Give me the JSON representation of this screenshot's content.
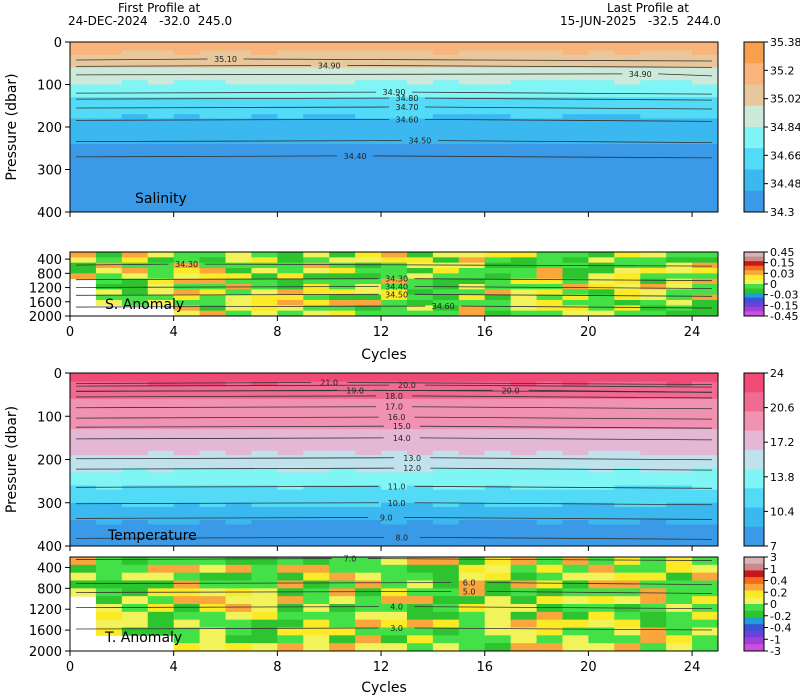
{
  "header": {
    "first_label": "First Profile at",
    "first_value": "24-DEC-2024   -32.0  245.0",
    "last_label": "Last Profile at",
    "last_value": "15-JUN-2025   -32.5  244.0"
  },
  "chart_data": [
    {
      "type": "heatmap",
      "title": "Salinity",
      "xlabel": "Cycles",
      "ylabel": "Pressure (dbar)",
      "xlim": [
        0,
        25
      ],
      "ylim": [
        400,
        0
      ],
      "xticks": [
        0,
        4,
        8,
        12,
        16,
        20,
        24
      ],
      "yticks": [
        0,
        100,
        200,
        300,
        400
      ],
      "colorbar": {
        "ticks": [
          "35.38",
          "35.2",
          "35.02",
          "34.84",
          "34.66",
          "34.48",
          "34.3"
        ],
        "colors": [
          "#f7a04b",
          "#f8b47a",
          "#e8c79c",
          "#cde9da",
          "#7ff5f5",
          "#52daf7",
          "#3bb8f0",
          "#3a9ae8"
        ]
      },
      "contours": [
        {
          "label": "35.10",
          "x": 6.0,
          "y": 40
        },
        {
          "label": "34.90",
          "x": 10.0,
          "y": 55
        },
        {
          "label": "34.90",
          "x": 22.0,
          "y": 75
        },
        {
          "label": "34.90",
          "x": 12.5,
          "y": 118
        },
        {
          "label": "34.80",
          "x": 13.0,
          "y": 132
        },
        {
          "label": "34.70",
          "x": 13.0,
          "y": 153
        },
        {
          "label": "34.60",
          "x": 13.0,
          "y": 182
        },
        {
          "label": "34.50",
          "x": 13.5,
          "y": 232
        },
        {
          "label": "34.40",
          "x": 11.0,
          "y": 268
        }
      ]
    },
    {
      "type": "heatmap",
      "title": "S. Anomaly",
      "xlabel": "Cycles",
      "xlim": [
        0,
        25
      ],
      "ylim": [
        2000,
        200
      ],
      "xticks": [
        0,
        4,
        8,
        12,
        16,
        20,
        24
      ],
      "yticks": [
        400,
        800,
        1200,
        1600,
        2000
      ],
      "colorbar": {
        "ticks": [
          "0.45",
          "0.15",
          "0.03",
          "0",
          "-0.03",
          "-0.15",
          "-0.45"
        ],
        "colors": [
          "#d8b4b6",
          "#c98a8c",
          "#c8161b",
          "#f46b1e",
          "#f9a63c",
          "#fdea26",
          "#f2f25a",
          "#44e048",
          "#2dc42f",
          "#1e9dd7",
          "#3855d6",
          "#6c40d9",
          "#a13fd6",
          "#cc4fe0"
        ]
      },
      "contours": [
        {
          "label": "34.30",
          "x": 4.5,
          "y": 540
        },
        {
          "label": "34.30",
          "x": 12.6,
          "y": 950
        },
        {
          "label": "34.40",
          "x": 12.6,
          "y": 1170
        },
        {
          "label": "34.50",
          "x": 12.6,
          "y": 1390
        },
        {
          "label": "34.60",
          "x": 14.4,
          "y": 1720
        }
      ]
    },
    {
      "type": "heatmap",
      "title": "Temperature",
      "xlabel": "Cycles",
      "ylabel": "Pressure (dbar)",
      "xlim": [
        0,
        25
      ],
      "ylim": [
        400,
        0
      ],
      "xticks": [
        0,
        4,
        8,
        12,
        16,
        20,
        24
      ],
      "yticks": [
        0,
        100,
        200,
        300,
        400
      ],
      "colorbar": {
        "ticks": [
          "24",
          "20.6",
          "17.2",
          "13.8",
          "10.4",
          "7"
        ],
        "colors": [
          "#f14a76",
          "#f06a92",
          "#f192b2",
          "#e4b8d4",
          "#bfe2ec",
          "#7ff5f5",
          "#52daf7",
          "#3bb8f0",
          "#3a9ae8"
        ]
      },
      "contours": [
        {
          "label": "21.0",
          "x": 10.0,
          "y": 22
        },
        {
          "label": "20.0",
          "x": 13.0,
          "y": 28
        },
        {
          "label": "20.0",
          "x": 17.0,
          "y": 40
        },
        {
          "label": "19.0",
          "x": 11.0,
          "y": 40
        },
        {
          "label": "18.0",
          "x": 12.5,
          "y": 53
        },
        {
          "label": "17.0",
          "x": 12.5,
          "y": 78
        },
        {
          "label": "16.0",
          "x": 12.6,
          "y": 102
        },
        {
          "label": "15.0",
          "x": 12.8,
          "y": 123
        },
        {
          "label": "14.0",
          "x": 12.8,
          "y": 150
        },
        {
          "label": "13.0",
          "x": 13.2,
          "y": 196
        },
        {
          "label": "12.0",
          "x": 13.2,
          "y": 220
        },
        {
          "label": "11.0",
          "x": 12.6,
          "y": 262
        },
        {
          "label": "10.0",
          "x": 12.6,
          "y": 300
        },
        {
          "label": "9.0",
          "x": 12.2,
          "y": 334
        },
        {
          "label": "8.0",
          "x": 12.8,
          "y": 380
        }
      ]
    },
    {
      "type": "heatmap",
      "title": "T. Anomaly",
      "xlabel": "Cycles",
      "xlim": [
        0,
        25
      ],
      "ylim": [
        2000,
        200
      ],
      "xticks": [
        0,
        4,
        8,
        12,
        16,
        20,
        24
      ],
      "yticks": [
        400,
        800,
        1200,
        1600,
        2000
      ],
      "colorbar": {
        "ticks": [
          "3",
          "1",
          "0.4",
          "0.2",
          "0",
          "-0.2",
          "-0.4",
          "-1",
          "-3"
        ],
        "colors": [
          "#d8b4b6",
          "#c98a8c",
          "#c8161b",
          "#f46b1e",
          "#f9a63c",
          "#fdea26",
          "#f2f25a",
          "#44e048",
          "#2dc42f",
          "#1e9dd7",
          "#3855d6",
          "#6c40d9",
          "#a13fd6",
          "#cc4fe0"
        ]
      },
      "contours": [
        {
          "label": "7.0",
          "x": 10.8,
          "y": 230
        },
        {
          "label": "6.0",
          "x": 15.4,
          "y": 690
        },
        {
          "label": "5.0",
          "x": 15.4,
          "y": 860
        },
        {
          "label": "4.0",
          "x": 12.6,
          "y": 1150
        },
        {
          "label": "3.0",
          "x": 12.6,
          "y": 1560
        }
      ]
    }
  ]
}
